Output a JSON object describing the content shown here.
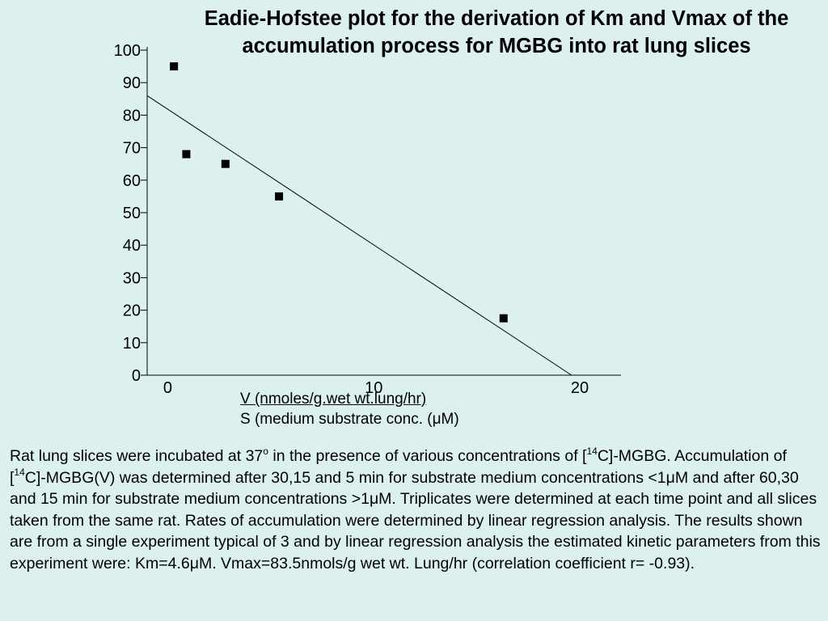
{
  "title": {
    "line1": "Eadie-Hofstee plot for the derivation of Km and Vmax of the",
    "line2": "accumulation process for MGBG into rat lung slices"
  },
  "chart_data": {
    "type": "scatter",
    "title": "Eadie-Hofstee plot for the derivation of Km and Vmax of the accumulation process for MGBG into rat lung slices",
    "ylabel": "V (nmoles/g.wet wt.lung/hr)",
    "xlabel": "S (medium substrate conc. (μM)",
    "xlim": [
      -1,
      22
    ],
    "ylim": [
      0,
      100
    ],
    "xticks": [
      0,
      10,
      20
    ],
    "yticks": [
      0,
      10,
      20,
      30,
      40,
      50,
      60,
      70,
      80,
      90,
      100
    ],
    "grid": false,
    "series": [
      {
        "marker": "square",
        "color": "#000000",
        "x": [
          0.3,
          0.9,
          2.8,
          5.4,
          16.3
        ],
        "y": [
          95,
          68,
          65,
          55,
          17.5
        ]
      }
    ],
    "regression_line": {
      "x": [
        -1,
        19.6
      ],
      "y": [
        86,
        0
      ],
      "color": "#000000"
    }
  },
  "x_labels": {
    "v_label": "V (nmoles/g.wet wt.lung/hr)",
    "s_label": "S (medium substrate conc. (μM)"
  },
  "caption": {
    "part1": "Rat lung slices were incubated at 37",
    "sup_o": "o",
    "part2": " in the presence of various concentrations of [",
    "sup_14a": "14",
    "part3": "C]-MGBG. Accumulation of [",
    "sup_14b": "14",
    "part4": "C]-MGBG(V) was determined after 30,15 and 5 min for substrate medium concentrations <1μM and after 60,30 and 15 min for substrate medium concentrations >1μM.  Triplicates were determined at each time point and all slices taken from the same rat.  Rates of accumulation were determined by linear regression analysis.  The results shown are from a single experiment typical of 3 and by linear regression analysis the estimated kinetic parameters from this experiment were: Km=4.6μM.  Vmax=83.5nmols/g wet wt. Lung/hr (correlation coefficient r= -0.93)."
  }
}
